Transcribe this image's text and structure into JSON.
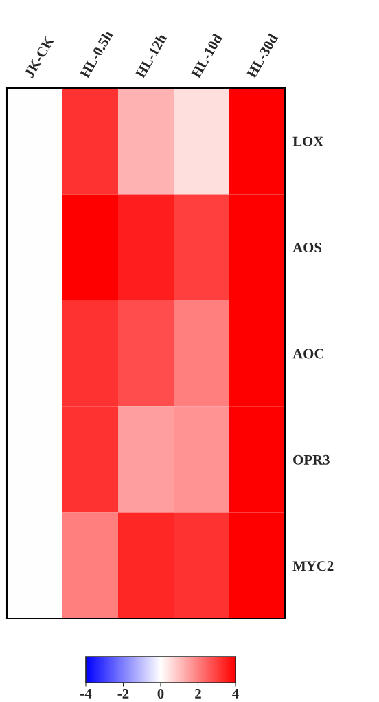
{
  "chart_data": {
    "type": "heatmap",
    "categories": [
      "JK-CK",
      "HL-0.5h",
      "HL-12h",
      "HL-10d",
      "HL-30d"
    ],
    "y_categories": [
      "LOX",
      "AOS",
      "AOC",
      "OPR3",
      "MYC2"
    ],
    "cells": [
      [
        0,
        3.2,
        1.2,
        0.5,
        4
      ],
      [
        0,
        4,
        3.5,
        3.0,
        4
      ],
      [
        0,
        3.2,
        2.8,
        2.0,
        4
      ],
      [
        0,
        3.2,
        1.5,
        1.7,
        4
      ],
      [
        0,
        2.0,
        3.4,
        3.2,
        4
      ]
    ],
    "clim": [
      -4,
      4
    ],
    "cticks": [
      -4,
      -2,
      0,
      2,
      4
    ]
  }
}
